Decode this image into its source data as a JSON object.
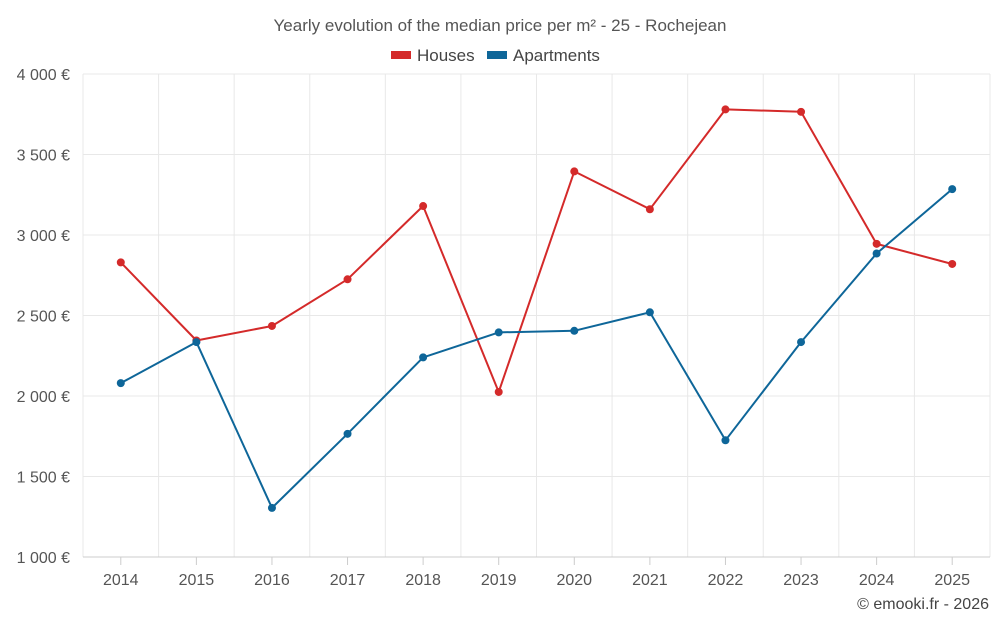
{
  "chart_data": {
    "type": "line",
    "title": "Yearly evolution of the median price per m² - 25 - Rochejean",
    "categories": [
      "2014",
      "2015",
      "2016",
      "2017",
      "2018",
      "2019",
      "2020",
      "2021",
      "2022",
      "2023",
      "2024",
      "2025"
    ],
    "series": [
      {
        "name": "Houses",
        "color": "#d42a2a",
        "values": [
          2830,
          2345,
          2435,
          2725,
          3180,
          2025,
          3395,
          3160,
          3780,
          3765,
          2945,
          2820
        ]
      },
      {
        "name": "Apartments",
        "color": "#0e6699",
        "values": [
          2080,
          2335,
          1305,
          1765,
          2240,
          2395,
          2405,
          2520,
          1725,
          2335,
          2885,
          3285
        ]
      }
    ],
    "ylim": [
      1000,
      4000
    ],
    "yticks": [
      1000,
      1500,
      2000,
      2500,
      3000,
      3500,
      4000
    ],
    "ytick_labels": [
      "1 000 €",
      "1 500 €",
      "2 000 €",
      "2 500 €",
      "3 000 €",
      "3 500 €",
      "4 000 €"
    ],
    "xlabel": "",
    "ylabel": "",
    "legend_position": "top-center",
    "grid": true
  },
  "credit": "© emooki.fr - 2026"
}
